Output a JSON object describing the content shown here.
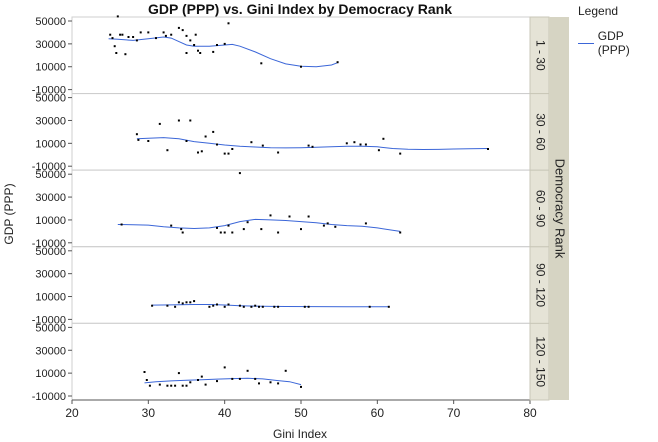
{
  "chart_data": {
    "type": "scatter",
    "title": "GDP (PPP) vs. Gini Index by Democracy Rank",
    "xlabel": "Gini Index",
    "ylabel": "GDP (PPP)",
    "xlim": [
      20,
      80
    ],
    "ylim": [
      -10000,
      50000
    ],
    "x_ticks": [
      "20",
      "30",
      "40",
      "50",
      "60",
      "70",
      "80"
    ],
    "y_ticks": [
      "-10000",
      "10000",
      "30000",
      "50000"
    ],
    "facet_label": "Democracy Rank",
    "legend": {
      "title": "Legend",
      "placement": "top-right",
      "items": [
        {
          "label": "GDP (PPP)",
          "color": "#3b66d8"
        }
      ]
    },
    "colors": {
      "points": "#000000",
      "smoother": "#3b66d8",
      "strip": "#e5e3d6",
      "strip_outer": "#d6d4c3"
    },
    "panels": [
      {
        "label": "1 - 30",
        "points": [
          [
            25.0,
            38000
          ],
          [
            25.3,
            35000
          ],
          [
            25.6,
            28000
          ],
          [
            25.8,
            22000
          ],
          [
            26.0,
            54000
          ],
          [
            26.3,
            38000
          ],
          [
            26.6,
            38000
          ],
          [
            27.0,
            21000
          ],
          [
            27.4,
            36000
          ],
          [
            28.0,
            36000
          ],
          [
            28.5,
            33000
          ],
          [
            29.0,
            40000
          ],
          [
            30.0,
            40000
          ],
          [
            31.0,
            35000
          ],
          [
            32.0,
            40000
          ],
          [
            32.3,
            37000
          ],
          [
            33.0,
            38000
          ],
          [
            34.0,
            44000
          ],
          [
            34.5,
            42000
          ],
          [
            35.0,
            22000
          ],
          [
            35.0,
            37000
          ],
          [
            35.5,
            33000
          ],
          [
            36.0,
            29000
          ],
          [
            36.2,
            38000
          ],
          [
            36.5,
            24000
          ],
          [
            36.8,
            22000
          ],
          [
            38.5,
            23000
          ],
          [
            39.0,
            29000
          ],
          [
            40.0,
            30000
          ],
          [
            40.5,
            48000
          ],
          [
            44.8,
            13000
          ],
          [
            50.0,
            10000
          ],
          [
            54.8,
            14000
          ]
        ],
        "smooth": [
          [
            24.8,
            34500
          ],
          [
            26,
            34000
          ],
          [
            28,
            33000
          ],
          [
            30,
            34500
          ],
          [
            32,
            36000
          ],
          [
            33,
            35000
          ],
          [
            34,
            32000
          ],
          [
            35,
            29000
          ],
          [
            36,
            28000
          ],
          [
            38,
            28000
          ],
          [
            40,
            29000
          ],
          [
            41,
            29500
          ],
          [
            42,
            28000
          ],
          [
            44,
            23000
          ],
          [
            46,
            17000
          ],
          [
            48,
            12500
          ],
          [
            50,
            10500
          ],
          [
            52,
            10000
          ],
          [
            54,
            11500
          ],
          [
            54.8,
            13500
          ]
        ]
      },
      {
        "label": "30 - 60",
        "points": [
          [
            28.5,
            18000
          ],
          [
            28.7,
            13000
          ],
          [
            30.0,
            12000
          ],
          [
            31.5,
            27000
          ],
          [
            32.5,
            4000
          ],
          [
            34.0,
            30000
          ],
          [
            35.0,
            12000
          ],
          [
            35.5,
            30000
          ],
          [
            36.5,
            2000
          ],
          [
            37.0,
            3000
          ],
          [
            37.5,
            16000
          ],
          [
            38.5,
            20000
          ],
          [
            39.0,
            9000
          ],
          [
            40.0,
            1000
          ],
          [
            40.5,
            1000
          ],
          [
            41.0,
            5000
          ],
          [
            43.5,
            11000
          ],
          [
            45.0,
            8000
          ],
          [
            47.0,
            2000
          ],
          [
            51.0,
            8000
          ],
          [
            51.5,
            7000
          ],
          [
            56.0,
            10000
          ],
          [
            57.0,
            11000
          ],
          [
            57.8,
            9000
          ],
          [
            58.5,
            9000
          ],
          [
            60.2,
            4000
          ],
          [
            60.8,
            14000
          ],
          [
            63.0,
            1000
          ],
          [
            74.5,
            5000
          ]
        ],
        "smooth": [
          [
            28.5,
            14000
          ],
          [
            30,
            14500
          ],
          [
            32,
            15000
          ],
          [
            34,
            14000
          ],
          [
            36,
            11500
          ],
          [
            38,
            10000
          ],
          [
            40,
            8500
          ],
          [
            42,
            7500
          ],
          [
            44,
            6800
          ],
          [
            46,
            6200
          ],
          [
            48,
            6000
          ],
          [
            50,
            6200
          ],
          [
            52,
            6500
          ],
          [
            54,
            7000
          ],
          [
            56,
            7500
          ],
          [
            58,
            7500
          ],
          [
            60,
            7000
          ],
          [
            62,
            5500
          ],
          [
            64,
            4800
          ],
          [
            66,
            4600
          ],
          [
            68,
            4700
          ],
          [
            70,
            5000
          ],
          [
            72,
            5200
          ],
          [
            74.5,
            5500
          ]
        ]
      },
      {
        "label": "60 - 90",
        "points": [
          [
            26.5,
            6000
          ],
          [
            33.0,
            5000
          ],
          [
            34.3,
            2000
          ],
          [
            34.5,
            -1000
          ],
          [
            39.0,
            3000
          ],
          [
            39.5,
            -1000
          ],
          [
            40.0,
            -1000
          ],
          [
            40.5,
            5000
          ],
          [
            41.0,
            -1000
          ],
          [
            42.0,
            51000
          ],
          [
            42.5,
            2000
          ],
          [
            43.0,
            8000
          ],
          [
            44.8,
            2000
          ],
          [
            46.0,
            14000
          ],
          [
            47.0,
            -1000
          ],
          [
            48.5,
            13000
          ],
          [
            50.0,
            2000
          ],
          [
            51.0,
            13000
          ],
          [
            53.0,
            5000
          ],
          [
            53.5,
            7000
          ],
          [
            54.5,
            4000
          ],
          [
            58.5,
            7000
          ],
          [
            63.0,
            -1000
          ]
        ],
        "smooth": [
          [
            26,
            6000
          ],
          [
            28,
            5800
          ],
          [
            30,
            5500
          ],
          [
            32,
            4000
          ],
          [
            34,
            3000
          ],
          [
            36,
            2500
          ],
          [
            38,
            3000
          ],
          [
            40,
            5000
          ],
          [
            42,
            8500
          ],
          [
            44,
            10500
          ],
          [
            46,
            10000
          ],
          [
            48,
            9500
          ],
          [
            50,
            8500
          ],
          [
            52,
            7500
          ],
          [
            54,
            6000
          ],
          [
            56,
            5000
          ],
          [
            58,
            4500
          ],
          [
            60,
            3000
          ],
          [
            62,
            1000
          ],
          [
            63,
            0
          ]
        ]
      },
      {
        "label": "90 - 120",
        "points": [
          [
            30.5,
            2000
          ],
          [
            32.5,
            2000
          ],
          [
            33.5,
            1000
          ],
          [
            34.0,
            5000
          ],
          [
            34.5,
            4000
          ],
          [
            35.0,
            5000
          ],
          [
            35.5,
            5000
          ],
          [
            36.0,
            6000
          ],
          [
            38.0,
            1000
          ],
          [
            38.5,
            2000
          ],
          [
            39.0,
            3000
          ],
          [
            40.0,
            1000
          ],
          [
            40.5,
            3000
          ],
          [
            42.0,
            2000
          ],
          [
            42.5,
            1000
          ],
          [
            43.5,
            1000
          ],
          [
            44.0,
            2000
          ],
          [
            44.5,
            1000
          ],
          [
            45.0,
            1000
          ],
          [
            46.5,
            1000
          ],
          [
            47.0,
            1000
          ],
          [
            50.5,
            1000
          ],
          [
            51.0,
            1000
          ],
          [
            59.0,
            1000
          ],
          [
            61.5,
            1000
          ]
        ],
        "smooth": [
          [
            30.5,
            2500
          ],
          [
            33,
            2700
          ],
          [
            36,
            3000
          ],
          [
            38,
            3000
          ],
          [
            40,
            2600
          ],
          [
            42,
            2000
          ],
          [
            44,
            1600
          ],
          [
            46,
            1400
          ],
          [
            48,
            1300
          ],
          [
            52,
            1200
          ],
          [
            56,
            1100
          ],
          [
            60,
            1000
          ],
          [
            61.5,
            1000
          ]
        ]
      },
      {
        "label": "120 - 150",
        "points": [
          [
            29.5,
            11000
          ],
          [
            29.8,
            4000
          ],
          [
            30.2,
            -1000
          ],
          [
            31.5,
            0
          ],
          [
            32.5,
            -1000
          ],
          [
            33.0,
            -1000
          ],
          [
            33.5,
            -1000
          ],
          [
            34.0,
            10000
          ],
          [
            34.5,
            -1000
          ],
          [
            35.0,
            -1000
          ],
          [
            35.5,
            2000
          ],
          [
            36.5,
            4000
          ],
          [
            37.0,
            7000
          ],
          [
            37.5,
            0
          ],
          [
            39.0,
            3000
          ],
          [
            40.0,
            15000
          ],
          [
            41.0,
            5000
          ],
          [
            42.0,
            5000
          ],
          [
            43.0,
            12000
          ],
          [
            44.0,
            5000
          ],
          [
            44.5,
            1000
          ],
          [
            46.0,
            2000
          ],
          [
            47.0,
            1000
          ],
          [
            48.0,
            12000
          ],
          [
            50.0,
            -2000
          ]
        ],
        "smooth": [
          [
            29.5,
            1500
          ],
          [
            31,
            2500
          ],
          [
            33,
            3200
          ],
          [
            35,
            3800
          ],
          [
            37,
            4200
          ],
          [
            39,
            4800
          ],
          [
            41,
            5200
          ],
          [
            43,
            5500
          ],
          [
            45,
            5000
          ],
          [
            47,
            3500
          ],
          [
            48.5,
            2500
          ],
          [
            50,
            0
          ]
        ]
      }
    ]
  }
}
